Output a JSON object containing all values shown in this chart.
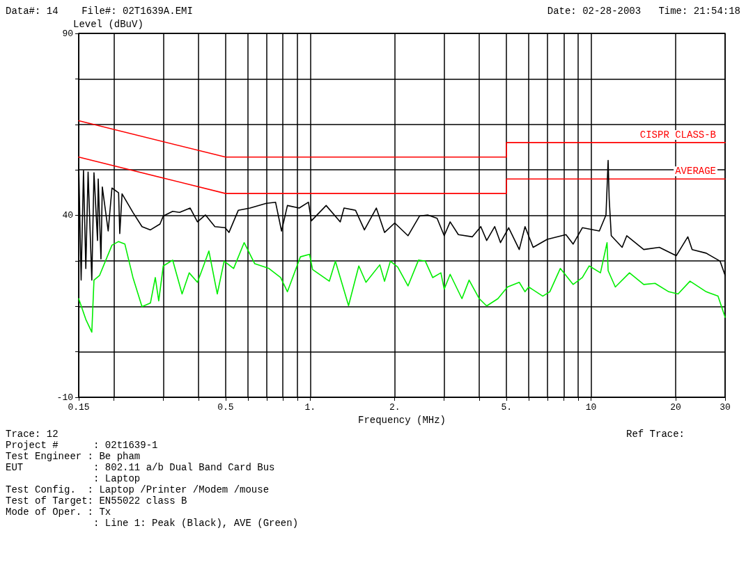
{
  "chart_data": {
    "type": "line",
    "title": "Data#: 14    File#: 02T1639A.EMI",
    "subtitle": "Date: 02-28-2003   Time: 21:54:18",
    "xlabel": "Frequency (MHz)",
    "ylabel": "Level (dBuV)",
    "log": "x",
    "grid": true,
    "marker": "none",
    "line_style": "solid",
    "xlim": [
      0.15,
      30
    ],
    "ylim": [
      -10,
      90
    ],
    "xticks": [
      0.15,
      {
        "value": 0.2,
        "label": null
      },
      {
        "value": 0.3,
        "label": null
      },
      {
        "value": 0.4,
        "label": null
      },
      0.5,
      {
        "value": 0.6,
        "label": null
      },
      {
        "value": 0.7,
        "label": null
      },
      {
        "value": 0.8,
        "label": null
      },
      {
        "value": 0.9,
        "label": null
      },
      {
        "value": 1,
        "label": "1."
      },
      {
        "value": 2,
        "label": "2."
      },
      {
        "value": 3,
        "label": null
      },
      {
        "value": 4,
        "label": null
      },
      {
        "value": 5,
        "label": "5."
      },
      {
        "value": 6,
        "label": null
      },
      {
        "value": 7,
        "label": null
      },
      {
        "value": 8,
        "label": null
      },
      {
        "value": 9,
        "label": null
      },
      10,
      20,
      30
    ],
    "yticks": [
      -10,
      {
        "value": 2.5,
        "label": null
      },
      {
        "value": 15,
        "label": null
      },
      {
        "value": 27.5,
        "label": null
      },
      40,
      {
        "value": 52.5,
        "label": null
      },
      {
        "value": 65,
        "label": null
      },
      {
        "value": 77.5,
        "label": null
      },
      90
    ],
    "series": [
      {
        "name": "CISPR CLASS-B",
        "color": "#ff0000",
        "x": [
          0.15,
          0.5,
          5,
          5,
          30
        ],
        "values": [
          66,
          56,
          56,
          60,
          60
        ]
      },
      {
        "name": "AVERAGE",
        "color": "#ff0000",
        "x": [
          0.15,
          0.5,
          5,
          5,
          30
        ],
        "values": [
          56,
          46,
          46,
          50,
          50
        ]
      },
      {
        "color": "#000000",
        "x": [
          0.15,
          0.153,
          0.156,
          0.159,
          0.162,
          0.167,
          0.17,
          0.175,
          0.176,
          0.18,
          0.182,
          0.191,
          0.197,
          0.208,
          0.21,
          0.214,
          0.234,
          0.252,
          0.27,
          0.292,
          0.3,
          0.324,
          0.343,
          0.374,
          0.397,
          0.424,
          0.458,
          0.498,
          0.514,
          0.555,
          0.611,
          0.698,
          0.753,
          0.791,
          0.83,
          0.914,
          0.986,
          1.01,
          1.14,
          1.28,
          1.32,
          1.45,
          1.56,
          1.72,
          1.84,
          2.0,
          2.23,
          2.45,
          2.62,
          2.83,
          3.0,
          3.15,
          3.37,
          3.78,
          4.05,
          4.25,
          4.54,
          4.76,
          5.09,
          5.55,
          5.82,
          6.22,
          6.98,
          8.14,
          8.63,
          9.31,
          10.7,
          11.3,
          11.5,
          11.6,
          11.8,
          12.9,
          13.4,
          15.4,
          17.5,
          20.1,
          22.1,
          22.9,
          25.7,
          28.8,
          30
        ],
        "values": [
          54.2,
          22.2,
          52.3,
          25.4,
          51.9,
          22.2,
          51.7,
          33.1,
          50.0,
          28.0,
          47.8,
          35.7,
          47.5,
          46.2,
          35.0,
          45.9,
          40.8,
          36.9,
          36.0,
          37.6,
          39.8,
          41.1,
          40.8,
          42.0,
          38.2,
          40.1,
          36.9,
          36.6,
          35.3,
          41.4,
          42.0,
          43.3,
          43.6,
          35.7,
          42.7,
          42.0,
          43.6,
          38.5,
          42.7,
          38.2,
          42.0,
          41.4,
          36.0,
          42.0,
          35.3,
          37.9,
          34.4,
          39.8,
          40.1,
          39.2,
          34.4,
          38.2,
          34.7,
          34.1,
          36.9,
          33.1,
          36.9,
          32.5,
          36.6,
          30.6,
          36.9,
          31.2,
          33.4,
          34.7,
          32.1,
          36.6,
          35.7,
          40.1,
          55.1,
          44.6,
          34.4,
          31.2,
          34.4,
          30.6,
          31.2,
          28.9,
          34.1,
          30.6,
          29.6,
          27.4,
          23.5
        ]
      },
      {
        "color": "#00ee00",
        "x": [
          0.15,
          0.159,
          0.167,
          0.17,
          0.178,
          0.197,
          0.208,
          0.219,
          0.234,
          0.252,
          0.27,
          0.281,
          0.289,
          0.3,
          0.324,
          0.35,
          0.371,
          0.397,
          0.42,
          0.436,
          0.467,
          0.494,
          0.534,
          0.582,
          0.635,
          0.713,
          0.785,
          0.83,
          0.923,
          0.995,
          1.02,
          1.17,
          1.23,
          1.37,
          1.49,
          1.58,
          1.77,
          1.84,
          1.93,
          2.05,
          2.23,
          2.43,
          2.57,
          2.73,
          2.92,
          3.0,
          3.15,
          3.47,
          3.68,
          4.0,
          4.25,
          4.66,
          5.04,
          5.55,
          5.82,
          6.0,
          6.73,
          7.13,
          7.77,
          8.63,
          9.31,
          9.85,
          10.8,
          11.4,
          11.5,
          12.2,
          13.7,
          15.4,
          16.9,
          18.9,
          20.4,
          22.5,
          25.7,
          28.3,
          30
        ],
        "values": [
          17.1,
          11.4,
          7.9,
          22.2,
          23.5,
          31.8,
          32.8,
          32.1,
          22.9,
          14.9,
          15.9,
          22.9,
          16.5,
          26.1,
          27.7,
          18.4,
          24.2,
          21.6,
          26.7,
          30.2,
          18.4,
          27.4,
          25.4,
          32.5,
          26.7,
          25.4,
          22.9,
          19.0,
          28.6,
          29.3,
          25.1,
          21.9,
          27.4,
          15.2,
          26.1,
          21.6,
          26.4,
          21.9,
          27.4,
          25.8,
          20.6,
          27.7,
          27.4,
          22.9,
          24.2,
          19.7,
          23.8,
          17.1,
          22.2,
          17.1,
          15.1,
          17.1,
          20.3,
          21.6,
          19.0,
          20.3,
          17.8,
          19.0,
          25.4,
          21.0,
          22.9,
          26.1,
          24.2,
          32.5,
          24.8,
          20.3,
          24.2,
          21.0,
          21.3,
          19.0,
          18.4,
          21.9,
          19.0,
          17.8,
          12.0
        ]
      }
    ],
    "annotations": [
      "Trace: 12",
      "Ref Trace:",
      "Project #      : 02t1639-1",
      "Test Engineer : Be pham",
      "EUT            : 802.11 a/b Dual Band Card Bus",
      "               : Laptop",
      "Test Config.  : Laptop /Printer /Modem /mouse",
      "Test of Target: EN55022 class B",
      "Mode of Oper. : Tx",
      "               : Line 1: Peak (Black), AVE (Green)"
    ]
  }
}
